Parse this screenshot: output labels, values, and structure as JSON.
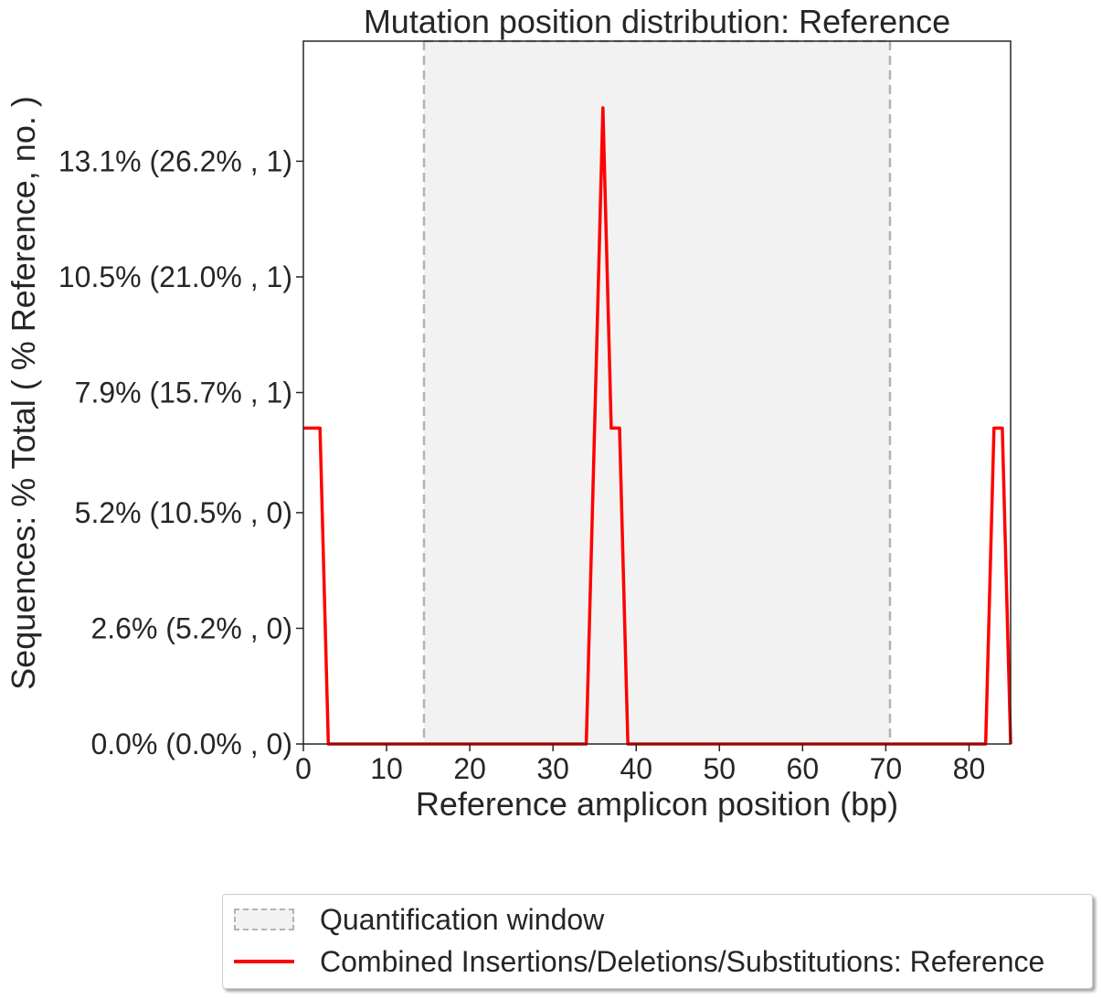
{
  "chart_data": {
    "type": "line",
    "title": "Mutation position distribution: Reference",
    "xlabel": "Reference amplicon position (bp)",
    "ylabel": "Sequences: % Total ( % Reference, no. )",
    "xlim": [
      0,
      85
    ],
    "ylim": [
      0,
      15.8
    ],
    "x_ticks": [
      0,
      10,
      20,
      30,
      40,
      50,
      60,
      70,
      80
    ],
    "x_tick_labels": [
      "0",
      "10",
      "20",
      "30",
      "40",
      "50",
      "60",
      "70",
      "80"
    ],
    "y_ticks": [
      0,
      2.6,
      5.2,
      7.9,
      10.5,
      13.1
    ],
    "y_tick_labels": [
      "0.0% (0.0% , 0)",
      "2.6% (5.2% , 0)",
      "5.2% (10.5% , 0)",
      "7.9% (15.7% , 1)",
      "10.5% (21.0% , 1)",
      "13.1% (26.2% , 1)"
    ],
    "quantification_window": {
      "x_start": 14.5,
      "x_end": 70.5,
      "fill": "#f2f2f2",
      "edge": "#b3b3b3"
    },
    "series": [
      {
        "name": "Combined Insertions/Deletions/Substitutions: Reference",
        "color": "#ff0000",
        "x": [
          0,
          1,
          2,
          3,
          4,
          10,
          20,
          30,
          34,
          35,
          36,
          37,
          38,
          39,
          40,
          50,
          60,
          70,
          80,
          82,
          83,
          84,
          85
        ],
        "y": [
          7.1,
          7.1,
          7.1,
          0,
          0,
          0,
          0,
          0,
          0,
          7.1,
          14.3,
          7.1,
          7.1,
          0,
          0,
          0,
          0,
          0,
          0,
          0,
          7.1,
          7.1,
          0
        ]
      }
    ],
    "legend": {
      "placement": "bottom",
      "entries": [
        {
          "label": "Quantification window",
          "kind": "patch"
        },
        {
          "label": "Combined Insertions/Deletions/Substitutions: Reference",
          "kind": "line"
        }
      ]
    },
    "grid": false
  }
}
